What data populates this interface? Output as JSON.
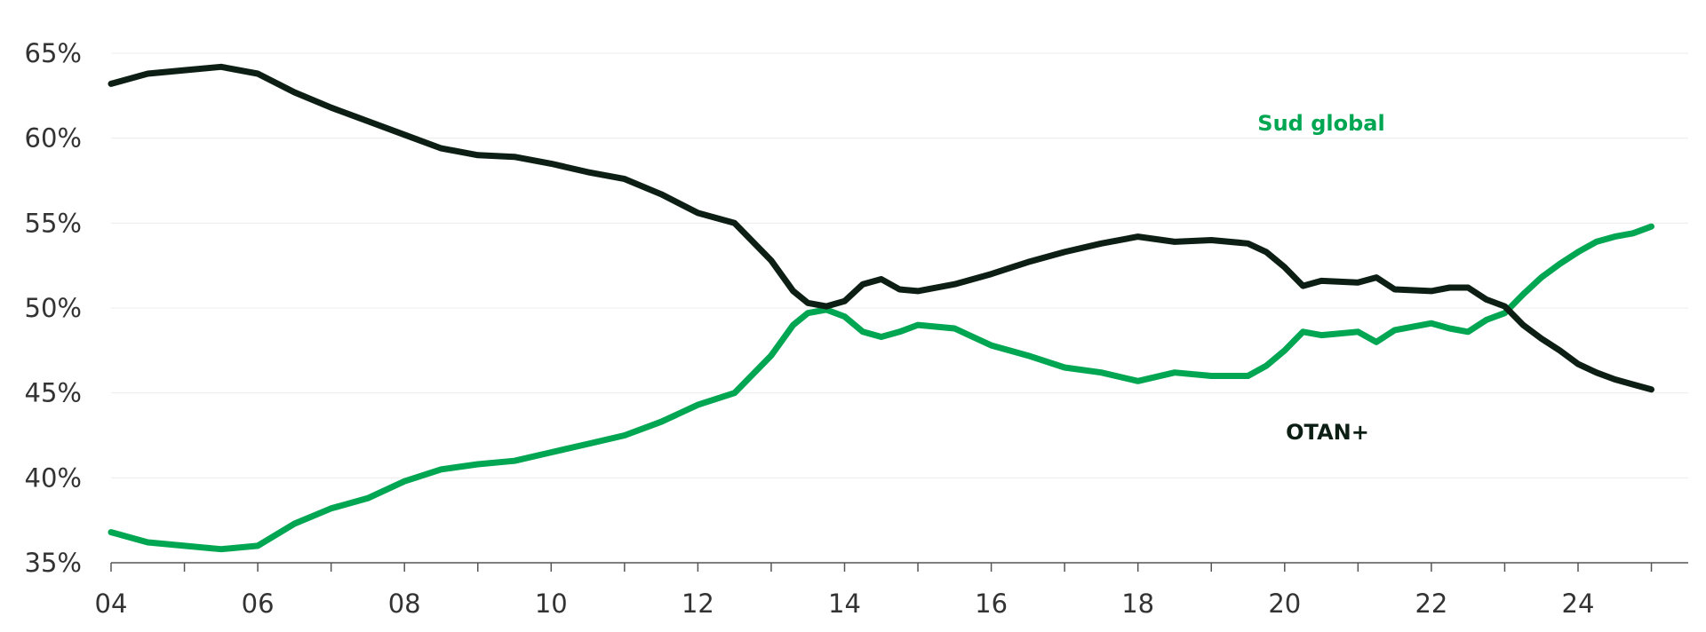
{
  "chart_data": {
    "type": "line",
    "title": "",
    "xlabel": "",
    "ylabel": "",
    "x_tick_labels": [
      "04",
      "06",
      "08",
      "10",
      "12",
      "14",
      "16",
      "18",
      "20",
      "22",
      "24"
    ],
    "x_tick_values": [
      2004,
      2006,
      2008,
      2010,
      2012,
      2014,
      2016,
      2018,
      2020,
      2022,
      2024
    ],
    "y_tick_labels": [
      "35%",
      "40%",
      "45%",
      "50%",
      "55%",
      "60%",
      "65%"
    ],
    "y_tick_values": [
      35,
      40,
      45,
      50,
      55,
      60,
      65
    ],
    "xlim": [
      2004,
      2025.5
    ],
    "ylim": [
      35,
      65
    ],
    "grid": "horizontal",
    "legend": "inline labels",
    "x": [
      2004.0,
      2004.5,
      2005.0,
      2005.5,
      2006.0,
      2006.5,
      2007.0,
      2007.5,
      2008.0,
      2008.5,
      2009.0,
      2009.5,
      2010.0,
      2010.5,
      2011.0,
      2011.5,
      2012.0,
      2012.5,
      2013.0,
      2013.3,
      2013.5,
      2013.75,
      2014.0,
      2014.25,
      2014.5,
      2014.75,
      2015.0,
      2015.5,
      2016.0,
      2016.5,
      2017.0,
      2017.5,
      2018.0,
      2018.5,
      2019.0,
      2019.5,
      2019.75,
      2020.0,
      2020.25,
      2020.5,
      2021.0,
      2021.25,
      2021.5,
      2022.0,
      2022.25,
      2022.5,
      2022.75,
      2023.0,
      2023.25,
      2023.5,
      2023.75,
      2024.0,
      2024.25,
      2024.5,
      2024.75,
      2025.0
    ],
    "series": [
      {
        "name": "Sud global",
        "color": "#00a651",
        "values": [
          36.8,
          36.2,
          36.0,
          35.8,
          36.0,
          37.3,
          38.2,
          38.8,
          39.8,
          40.5,
          40.8,
          41.0,
          41.5,
          42.0,
          42.5,
          43.3,
          44.3,
          45.0,
          47.2,
          49.0,
          49.7,
          49.9,
          49.5,
          48.6,
          48.3,
          48.6,
          49.0,
          48.8,
          47.8,
          47.2,
          46.5,
          46.2,
          45.7,
          46.2,
          46.0,
          46.0,
          46.6,
          47.5,
          48.6,
          48.4,
          48.6,
          48.0,
          48.7,
          49.1,
          48.8,
          48.6,
          49.3,
          49.7,
          50.8,
          51.8,
          52.6,
          53.3,
          53.9,
          54.2,
          54.4,
          54.8
        ],
        "label": "Sud global"
      },
      {
        "name": "OTAN+",
        "color": "#0d1f14",
        "values": [
          63.2,
          63.8,
          64.0,
          64.2,
          63.8,
          62.7,
          61.8,
          61.0,
          60.2,
          59.4,
          59.0,
          58.9,
          58.5,
          58.0,
          57.6,
          56.7,
          55.6,
          55.0,
          52.8,
          51.0,
          50.3,
          50.1,
          50.4,
          51.4,
          51.7,
          51.1,
          51.0,
          51.4,
          52.0,
          52.7,
          53.3,
          53.8,
          54.2,
          53.9,
          54.0,
          53.8,
          53.3,
          52.4,
          51.3,
          51.6,
          51.5,
          51.8,
          51.1,
          51.0,
          51.2,
          51.2,
          50.5,
          50.1,
          49.0,
          48.2,
          47.5,
          46.7,
          46.2,
          45.8,
          45.5,
          45.2
        ],
        "label": "OTAN+"
      }
    ]
  }
}
